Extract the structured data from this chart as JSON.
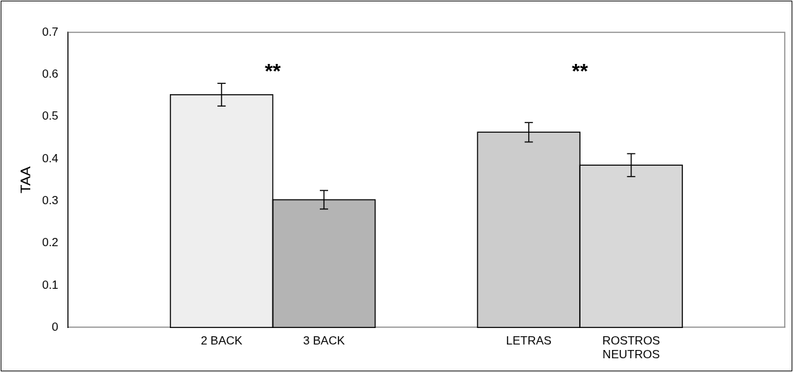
{
  "chart_data": {
    "type": "bar",
    "ylabel": "TAA",
    "categories": [
      null,
      "2 BACK",
      "3 BACK",
      null,
      "LETRAS",
      "ROSTROS NEUTROS",
      null
    ],
    "values": [
      null,
      0.552,
      0.303,
      null,
      0.463,
      0.385,
      null
    ],
    "errors": [
      null,
      0.027,
      0.022,
      null,
      0.023,
      0.027,
      null
    ],
    "colors": [
      "#ffffff",
      "#eeeeee",
      "#b4b4b4",
      "#ffffff",
      "#cccccc",
      "#d8d8d8",
      "#ffffff"
    ],
    "ylim": [
      0,
      0.7
    ],
    "yticks": [
      0,
      0.1,
      0.2,
      0.3,
      0.4,
      0.5,
      0.6,
      0.7
    ],
    "annotations": [
      "**",
      "**"
    ],
    "grid": false,
    "legend": false
  }
}
